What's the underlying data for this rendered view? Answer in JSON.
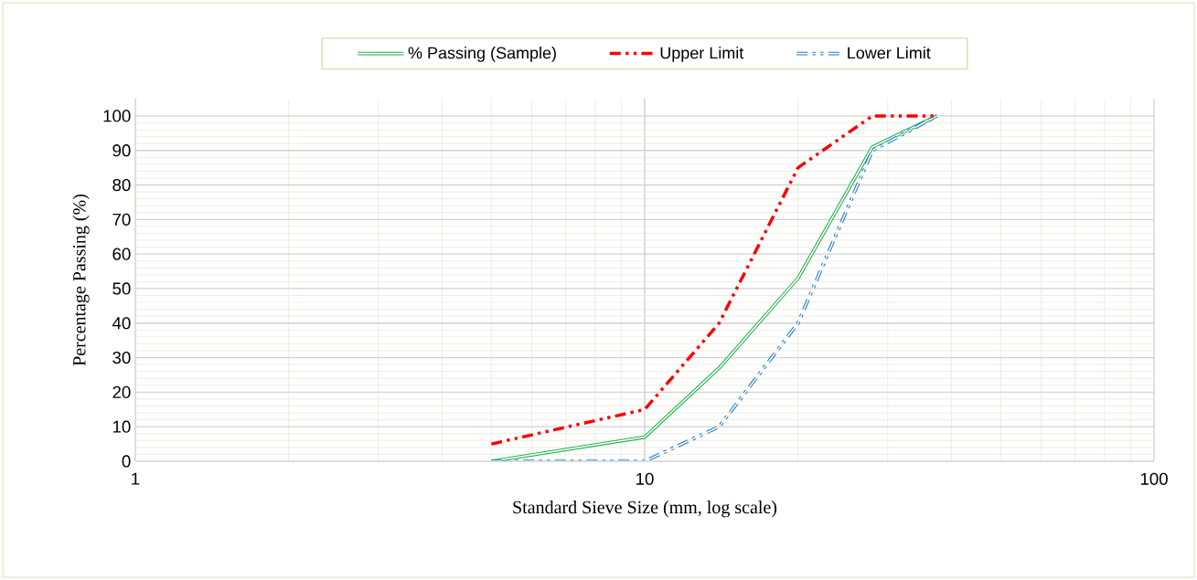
{
  "chart_data": {
    "type": "line",
    "xlabel": "Standard Sieve Size (mm, log scale)",
    "ylabel": "Percentage Passing (%)",
    "x": [
      5,
      10,
      14,
      20,
      28,
      37.5
    ],
    "series": [
      {
        "name": "% Passing (Sample)",
        "color": "#22b14c",
        "values": [
          0,
          7,
          27,
          53,
          91,
          100
        ],
        "line_style": "solid"
      },
      {
        "name": "Upper Limit",
        "color": "#ff0000",
        "values": [
          5,
          15,
          40,
          85,
          100,
          100
        ],
        "line_style": "dashed"
      },
      {
        "name": "Lower Limit",
        "color": "#1f78c8",
        "values": [
          0,
          0,
          10,
          40,
          90,
          100
        ],
        "line_style": "dashed"
      }
    ],
    "log": "x",
    "xlim": [
      1,
      100
    ],
    "xticks": [
      1,
      10,
      100
    ],
    "ylim": [
      0,
      105
    ],
    "yticks": [
      0,
      10,
      20,
      30,
      40,
      50,
      60,
      70,
      80,
      90,
      100
    ],
    "grid": true,
    "legend": "top",
    "marker": "none"
  }
}
